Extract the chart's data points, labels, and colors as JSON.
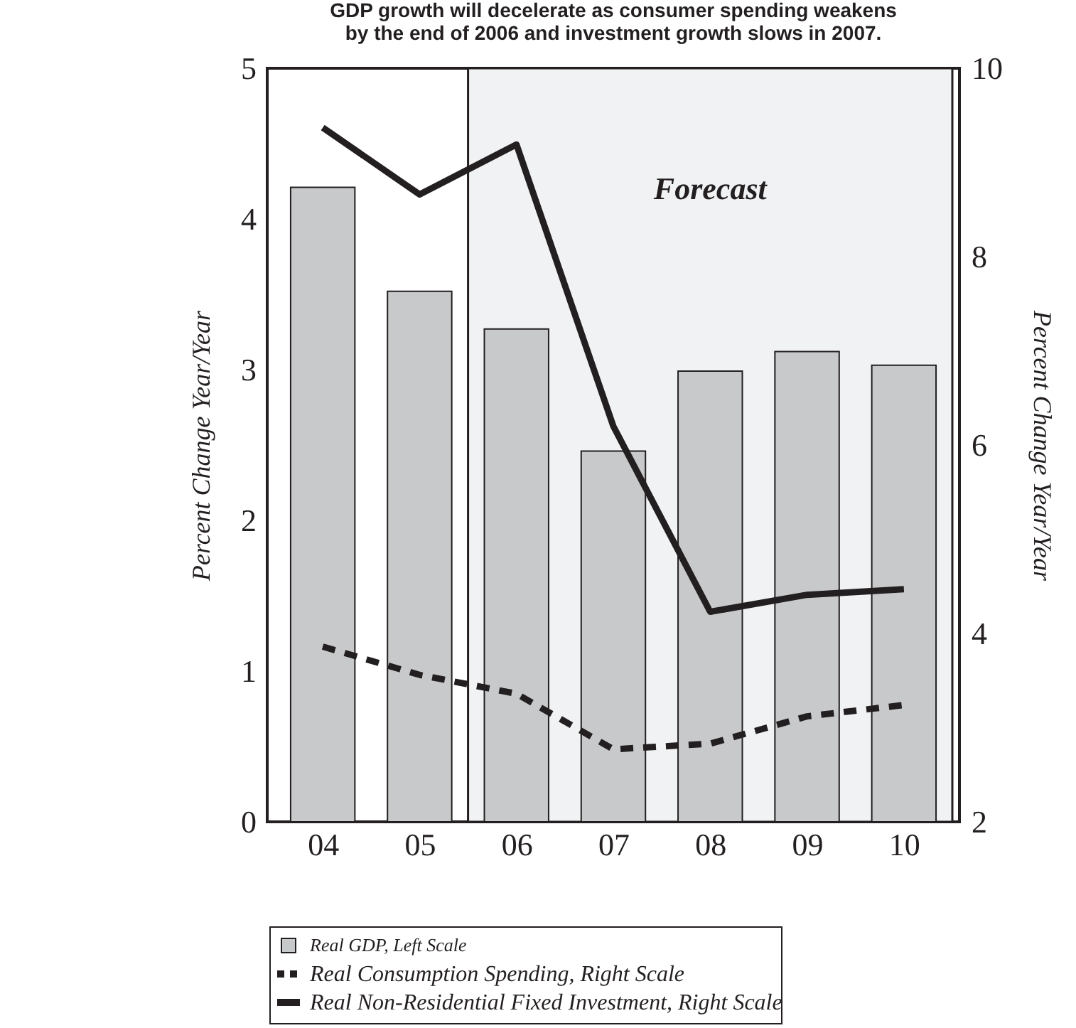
{
  "chart_data": {
    "type": "bar",
    "title": "GDP growth will decelerate as consumer spending weakens\nby the end of 2006 and investment growth slows in 2007.",
    "categories": [
      "04",
      "05",
      "06",
      "07",
      "08",
      "09",
      "10"
    ],
    "ylabel": "Percent Change Year/Year",
    "y2label": "Percent Change Year/Year",
    "ylim": [
      0,
      5
    ],
    "yticks": [
      0,
      1,
      2,
      3,
      4,
      5
    ],
    "y2lim": [
      2,
      10
    ],
    "y2ticks": [
      2,
      4,
      6,
      8,
      10
    ],
    "series": [
      {
        "name": "Real GDP, Left Scale",
        "color": "#c8c9cb",
        "values": [
          4.21,
          3.52,
          3.27,
          2.46,
          2.99,
          3.12,
          3.03
        ]
      },
      {
        "name": "Real Consumption Spending, Right Scale",
        "type": "line",
        "axis": "y2",
        "line_style": "dashed",
        "color": "#231f20",
        "values": [
          3.86,
          3.56,
          3.36,
          2.77,
          2.83,
          3.12,
          3.24
        ]
      },
      {
        "name": "Real Non-Residential Fixed Investment, Right Scale",
        "type": "line",
        "axis": "y2",
        "line_style": "solid",
        "color": "#231f20",
        "values": [
          9.37,
          8.66,
          9.19,
          6.2,
          4.23,
          4.41,
          4.47
        ]
      }
    ],
    "bands": [
      {
        "axis": "x",
        "from": "06",
        "to": "10",
        "label": "Forecast",
        "color": "#f1f2f4"
      }
    ],
    "legend": "bottom",
    "grid": false
  }
}
